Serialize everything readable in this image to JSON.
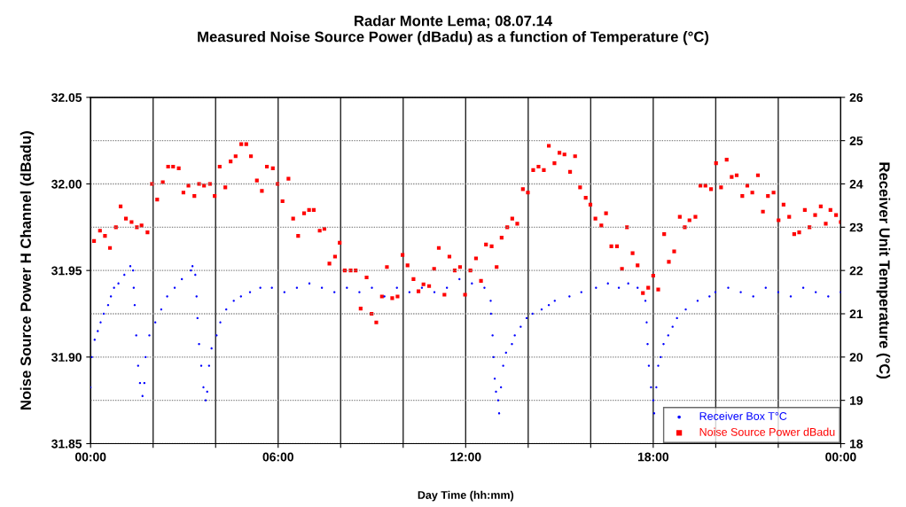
{
  "chart_data": {
    "type": "scatter",
    "title": "Radar Monte Lema; 08.07.14",
    "subtitle": "Measured Noise Source Power (dBadu) as a function of Temperature (°C)",
    "xlabel": "Day Time (hh:mm)",
    "ylabel": "Noise Source Power H Channel (dBadu)",
    "y2label": "Receiver Unit Temperature (°C)",
    "xlim": [
      0,
      24
    ],
    "xticks": [
      {
        "value": 0,
        "label": "00:00"
      },
      {
        "value": 2,
        "label": null
      },
      {
        "value": 4,
        "label": null
      },
      {
        "value": 6,
        "label": "06:00"
      },
      {
        "value": 8,
        "label": null
      },
      {
        "value": 10,
        "label": null
      },
      {
        "value": 12,
        "label": "12:00"
      },
      {
        "value": 14,
        "label": null
      },
      {
        "value": 16,
        "label": null
      },
      {
        "value": 18,
        "label": "18:00"
      },
      {
        "value": 20,
        "label": null
      },
      {
        "value": 22,
        "label": null
      },
      {
        "value": 24,
        "label": "00:00"
      }
    ],
    "ylim": [
      31.85,
      32.05
    ],
    "yticks": [
      {
        "value": 31.85,
        "label": "31.85"
      },
      {
        "value": 31.9,
        "label": "31.90"
      },
      {
        "value": 31.95,
        "label": "31.95"
      },
      {
        "value": 32.0,
        "label": "32.00"
      },
      {
        "value": 32.05,
        "label": "32.05"
      }
    ],
    "y2lim": [
      18,
      26
    ],
    "y2ticks": [
      18,
      19,
      20,
      21,
      22,
      23,
      24,
      25,
      26
    ],
    "grid": true,
    "legend": "bottom right",
    "series": [
      {
        "name": "Receiver Box T°C",
        "color": "#0000ff",
        "axis": "y2",
        "marker": "circle",
        "x": [
          0.0,
          0.04,
          0.13,
          0.23,
          0.32,
          0.42,
          0.56,
          0.65,
          0.75,
          0.89,
          1.08,
          1.27,
          1.36,
          1.38,
          1.41,
          1.46,
          1.52,
          1.58,
          1.66,
          1.72,
          1.76,
          1.88,
          2.07,
          2.26,
          2.45,
          2.69,
          2.92,
          3.21,
          3.26,
          3.35,
          3.39,
          3.42,
          3.47,
          3.54,
          3.61,
          3.68,
          3.73,
          3.79,
          3.87,
          4.03,
          4.15,
          4.34,
          4.58,
          4.81,
          5.1,
          5.43,
          5.8,
          6.2,
          6.6,
          7.0,
          7.4,
          7.8,
          8.2,
          8.6,
          9.0,
          9.4,
          9.8,
          10.2,
          10.6,
          11.0,
          11.4,
          11.8,
          12.2,
          12.6,
          12.8,
          12.81,
          12.86,
          12.89,
          12.93,
          12.97,
          13.04,
          13.07,
          13.13,
          13.2,
          13.29,
          13.48,
          13.57,
          13.76,
          13.95,
          14.14,
          14.43,
          14.66,
          14.85,
          15.32,
          15.7,
          16.17,
          16.55,
          16.9,
          17.2,
          17.5,
          17.75,
          17.79,
          17.82,
          17.86,
          17.93,
          18.0,
          18.03,
          18.1,
          18.16,
          18.24,
          18.33,
          18.48,
          18.62,
          18.76,
          19.04,
          19.42,
          19.8,
          19.99,
          20.4,
          20.8,
          21.2,
          21.6,
          22.0,
          22.4,
          22.8,
          23.2,
          23.6,
          24.0
        ],
        "values": [
          19.3,
          20.0,
          20.4,
          20.6,
          20.8,
          21.0,
          21.2,
          21.4,
          21.6,
          21.7,
          21.9,
          22.1,
          22.0,
          21.6,
          21.2,
          20.5,
          19.8,
          19.4,
          19.1,
          19.4,
          20.0,
          20.5,
          20.8,
          21.1,
          21.4,
          21.6,
          21.8,
          22.0,
          22.1,
          21.9,
          21.4,
          20.9,
          20.3,
          19.8,
          19.3,
          19.0,
          19.2,
          19.8,
          20.2,
          20.5,
          20.8,
          21.1,
          21.3,
          21.4,
          21.5,
          21.6,
          21.6,
          21.5,
          21.6,
          21.7,
          21.6,
          21.5,
          21.6,
          21.5,
          21.6,
          21.4,
          21.6,
          21.5,
          21.6,
          21.5,
          21.6,
          21.8,
          21.7,
          21.6,
          21.3,
          21.0,
          20.5,
          20.0,
          19.5,
          19.2,
          19.0,
          18.7,
          19.3,
          19.8,
          20.1,
          20.3,
          20.5,
          20.7,
          20.9,
          21.0,
          21.1,
          21.2,
          21.3,
          21.4,
          21.5,
          21.6,
          21.7,
          21.6,
          21.7,
          21.6,
          21.3,
          20.8,
          20.3,
          19.8,
          19.3,
          19.0,
          18.7,
          19.3,
          19.8,
          20.0,
          20.3,
          20.5,
          20.7,
          20.9,
          21.1,
          21.3,
          21.4,
          21.5,
          21.6,
          21.5,
          21.4,
          21.6,
          21.5,
          21.4,
          21.6,
          21.5,
          21.4,
          21.5
        ]
      },
      {
        "name": "Noise Source Power dBadu",
        "color": "#ff0000",
        "marker": "square",
        "x": [
          0.11,
          0.3,
          0.46,
          0.62,
          0.81,
          0.96,
          1.13,
          1.31,
          1.48,
          1.63,
          1.82,
          1.96,
          2.13,
          2.31,
          2.48,
          2.64,
          2.82,
          2.97,
          3.13,
          3.32,
          3.47,
          3.63,
          3.82,
          3.97,
          4.13,
          4.31,
          4.48,
          4.64,
          4.82,
          4.98,
          5.13,
          5.32,
          5.48,
          5.64,
          5.83,
          5.98,
          6.14,
          6.33,
          6.48,
          6.64,
          6.83,
          6.99,
          7.14,
          7.33,
          7.48,
          7.64,
          7.82,
          7.97,
          8.13,
          8.32,
          8.48,
          8.64,
          8.83,
          8.99,
          9.14,
          9.32,
          9.48,
          9.65,
          9.82,
          9.98,
          10.14,
          10.33,
          10.49,
          10.65,
          10.83,
          10.99,
          11.14,
          11.32,
          11.48,
          11.65,
          11.82,
          11.98,
          12.15,
          12.33,
          12.49,
          12.65,
          12.83,
          12.99,
          13.15,
          13.33,
          13.49,
          13.65,
          13.83,
          13.99,
          14.16,
          14.33,
          14.5,
          14.66,
          14.84,
          15.0,
          15.16,
          15.34,
          15.5,
          15.66,
          15.84,
          15.99,
          16.15,
          16.34,
          16.49,
          16.66,
          16.84,
          17.0,
          17.16,
          17.34,
          17.5,
          17.67,
          17.84,
          18.0,
          18.16,
          18.35,
          18.5,
          18.67,
          18.85,
          19.01,
          19.16,
          19.35,
          19.51,
          19.67,
          19.85,
          20.01,
          20.17,
          20.35,
          20.51,
          20.67,
          20.85,
          21.01,
          21.17,
          21.35,
          21.51,
          21.67,
          21.85,
          22.01,
          22.17,
          22.35,
          22.51,
          22.67,
          22.85,
          23.0,
          23.18,
          23.36,
          23.52,
          23.67,
          23.85,
          24.0
        ],
        "values": [
          31.967,
          31.973,
          31.97,
          31.963,
          31.975,
          31.987,
          31.98,
          31.978,
          31.975,
          31.976,
          31.972,
          32.0,
          31.991,
          32.001,
          32.01,
          32.01,
          32.009,
          31.995,
          31.999,
          31.993,
          32.0,
          31.999,
          32.0,
          31.993,
          32.01,
          31.998,
          32.013,
          32.016,
          32.023,
          32.023,
          32.016,
          32.002,
          31.996,
          32.01,
          32.009,
          32.0,
          31.99,
          32.003,
          31.98,
          31.97,
          31.983,
          31.985,
          31.985,
          31.973,
          31.974,
          31.954,
          31.958,
          31.966,
          31.95,
          31.95,
          31.95,
          31.928,
          31.946,
          31.925,
          31.92,
          31.935,
          31.952,
          31.934,
          31.935,
          31.959,
          31.953,
          31.945,
          31.938,
          31.942,
          31.941,
          31.951,
          31.963,
          31.936,
          31.958,
          31.95,
          31.952,
          31.936,
          31.95,
          31.957,
          31.944,
          31.965,
          31.964,
          31.952,
          31.969,
          31.975,
          31.98,
          31.977,
          31.997,
          31.995,
          32.008,
          32.01,
          32.008,
          32.022,
          32.012,
          32.018,
          32.017,
          32.007,
          32.016,
          31.998,
          31.992,
          31.988,
          31.98,
          31.976,
          31.983,
          31.964,
          31.964,
          31.951,
          31.975,
          31.96,
          31.953,
          31.937,
          31.94,
          31.947,
          31.939,
          31.971,
          31.955,
          31.961,
          31.981,
          31.975,
          31.979,
          31.981,
          31.999,
          31.999,
          31.997,
          32.012,
          31.998,
          32.014,
          32.004,
          32.005,
          31.993,
          31.999,
          31.995,
          32.005,
          31.984,
          31.993,
          31.995,
          31.979,
          31.988,
          31.981,
          31.971,
          31.972,
          31.985,
          31.975,
          31.982,
          31.987,
          31.977,
          31.985,
          31.982,
          31.978
        ]
      }
    ]
  }
}
